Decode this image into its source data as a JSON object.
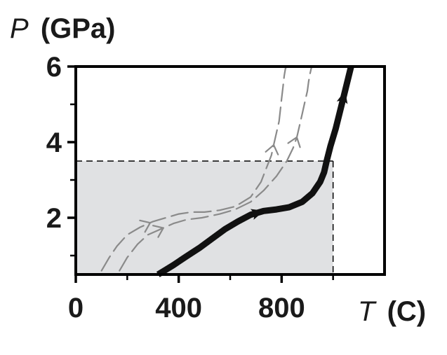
{
  "chart_data": {
    "type": "line",
    "title": "",
    "ylabel": {
      "variable": "P",
      "unit": "(GPa)"
    },
    "xlabel": {
      "variable": "T",
      "unit": "(C)"
    },
    "xlim": [
      0,
      1200
    ],
    "ylim": [
      0.5,
      6
    ],
    "xticks": [
      0,
      400,
      800
    ],
    "yticks": [
      2,
      4,
      6
    ],
    "grid": false,
    "legend": "none",
    "shaded_region": {
      "x": [
        0,
        1000
      ],
      "y": [
        0.5,
        3.5
      ],
      "color": "#e0e1e3"
    },
    "series": [
      {
        "style": "solid",
        "color": "#111111",
        "arrows_at": [
          0.38,
          0.9
        ],
        "x": [
          320,
          380,
          430,
          480,
          530,
          580,
          630,
          680,
          730,
          780,
          830,
          880,
          920,
          950,
          965,
          975,
          990,
          1010,
          1030,
          1050,
          1070
        ],
        "y": [
          0.5,
          0.75,
          0.98,
          1.2,
          1.45,
          1.7,
          1.9,
          2.08,
          2.18,
          2.22,
          2.28,
          2.42,
          2.65,
          2.95,
          3.2,
          3.5,
          3.9,
          4.35,
          4.9,
          5.45,
          6.0
        ]
      },
      {
        "style": "dashed",
        "color": "#8a8a8a",
        "arrows_at": [
          0.22,
          0.74
        ],
        "x": [
          100,
          130,
          160,
          200,
          250,
          300,
          350,
          400,
          450,
          500,
          560,
          620,
          680,
          720,
          740,
          760,
          770,
          780,
          790,
          795,
          800,
          805,
          810,
          815,
          820
        ],
        "y": [
          0.6,
          0.95,
          1.25,
          1.55,
          1.75,
          1.9,
          2.0,
          2.1,
          2.15,
          2.15,
          2.2,
          2.3,
          2.55,
          2.95,
          3.3,
          3.65,
          3.95,
          4.25,
          4.55,
          4.85,
          5.15,
          5.45,
          5.75,
          5.95,
          6.0
        ]
      },
      {
        "style": "dashed",
        "color": "#8a8a8a",
        "arrows_at": [
          0.2,
          0.76
        ],
        "x": [
          170,
          200,
          240,
          280,
          330,
          380,
          430,
          490,
          560,
          620,
          680,
          730,
          780,
          820,
          845,
          860,
          870,
          880,
          890,
          900,
          905,
          910,
          915,
          918
        ],
        "y": [
          0.6,
          0.95,
          1.3,
          1.55,
          1.7,
          1.85,
          1.95,
          2.0,
          2.1,
          2.22,
          2.42,
          2.72,
          3.1,
          3.5,
          3.85,
          4.15,
          4.45,
          4.75,
          5.05,
          5.35,
          5.6,
          5.8,
          5.95,
          6.0
        ]
      }
    ]
  }
}
